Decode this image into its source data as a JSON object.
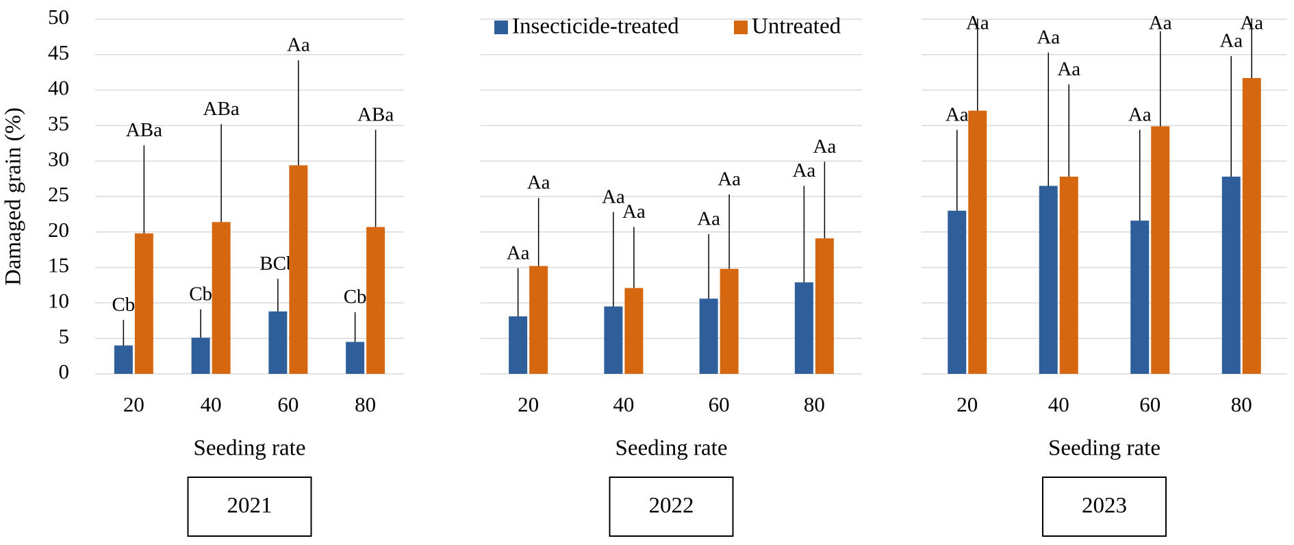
{
  "chart_data": [
    {
      "type": "bar",
      "x_label": "Seeding rate",
      "panel_label": "2021",
      "y_label": "Damaged grain (%)",
      "categories": [
        "20",
        "40",
        "60",
        "80"
      ],
      "ylim": [
        0,
        50
      ],
      "yticks": [
        0,
        5,
        10,
        15,
        20,
        25,
        30,
        35,
        40,
        45,
        50
      ],
      "grid": true,
      "series": [
        {
          "name": "Insecticide-treated",
          "color": "#2e5f9a",
          "values": [
            4,
            5.1,
            8.8,
            4.5
          ],
          "errors": [
            3.6,
            4.0,
            4.6,
            4.2
          ],
          "letters": [
            "Cb",
            "Cb",
            "BCb",
            "Cb"
          ]
        },
        {
          "name": "Untreated",
          "color": "#d4670f",
          "values": [
            19.8,
            21.4,
            29.4,
            20.7
          ],
          "errors": [
            12.4,
            13.8,
            14.8,
            13.7
          ],
          "letters": [
            "ABa",
            "ABa",
            "Aa",
            "ABa"
          ]
        }
      ]
    },
    {
      "type": "bar",
      "x_label": "Seeding rate",
      "panel_label": "2022",
      "categories": [
        "20",
        "40",
        "60",
        "80"
      ],
      "ylim": [
        0,
        50
      ],
      "grid": true,
      "legend": "top",
      "series": [
        {
          "name": "Insecticide-treated",
          "color": "#2e5f9a",
          "values": [
            8.1,
            9.5,
            10.6,
            12.9
          ],
          "errors": [
            6.8,
            13.3,
            9.1,
            13.6
          ],
          "letters": [
            "Aa",
            "Aa",
            "Aa",
            "Aa"
          ]
        },
        {
          "name": "Untreated",
          "color": "#d4670f",
          "values": [
            15.2,
            12.1,
            14.8,
            19.1
          ],
          "errors": [
            9.6,
            8.6,
            10.5,
            10.8
          ],
          "letters": [
            "Aa",
            "Aa",
            "Aa",
            "Aa"
          ]
        }
      ]
    },
    {
      "type": "bar",
      "x_label": "Seeding rate",
      "panel_label": "2023",
      "categories": [
        "20",
        "40",
        "60",
        "80"
      ],
      "ylim": [
        0,
        50
      ],
      "grid": true,
      "series": [
        {
          "name": "Insecticide-treated",
          "color": "#2e5f9a",
          "values": [
            23.0,
            26.5,
            21.6,
            27.8
          ],
          "errors": [
            11.4,
            18.8,
            12.8,
            17.0
          ],
          "letters": [
            "Aa",
            "Aa",
            "Aa",
            "Aa"
          ]
        },
        {
          "name": "Untreated",
          "color": "#d4670f",
          "values": [
            37.1,
            27.8,
            34.9,
            41.7
          ],
          "errors": [
            13.0,
            13.0,
            13.4,
            8.5
          ],
          "letters": [
            "Aa",
            "Aa",
            "Aa",
            "Aa"
          ]
        }
      ]
    }
  ]
}
